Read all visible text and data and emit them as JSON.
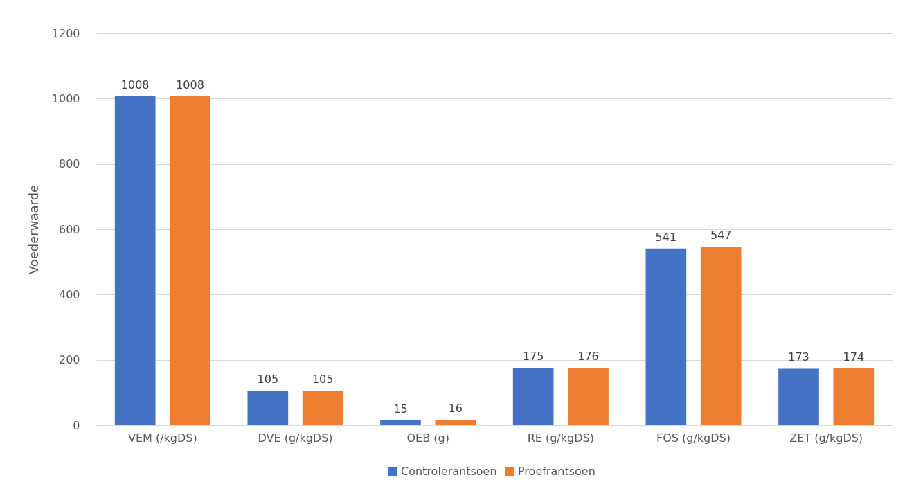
{
  "chart_data": {
    "type": "bar",
    "ylabel": "Voederwaarde",
    "categories": [
      "VEM (/kgDS)",
      "DVE (g/kgDS)",
      "OEB (g)",
      "RE (g/kgDS)",
      "FOS (g/kgDS)",
      "ZET (g/kgDS)"
    ],
    "series": [
      {
        "name": "Controlerantsoen",
        "color": "#4472c4",
        "values": [
          1008,
          105,
          15,
          175,
          541,
          173
        ]
      },
      {
        "name": "Proefrantsoen",
        "color": "#ed7d31",
        "values": [
          1008,
          105,
          16,
          176,
          547,
          174
        ]
      }
    ],
    "ylim": [
      0,
      1200
    ],
    "yticks": [
      0,
      200,
      400,
      600,
      800,
      1000,
      1200
    ],
    "grid": "y",
    "legend": "bottom",
    "data_labels": true
  }
}
